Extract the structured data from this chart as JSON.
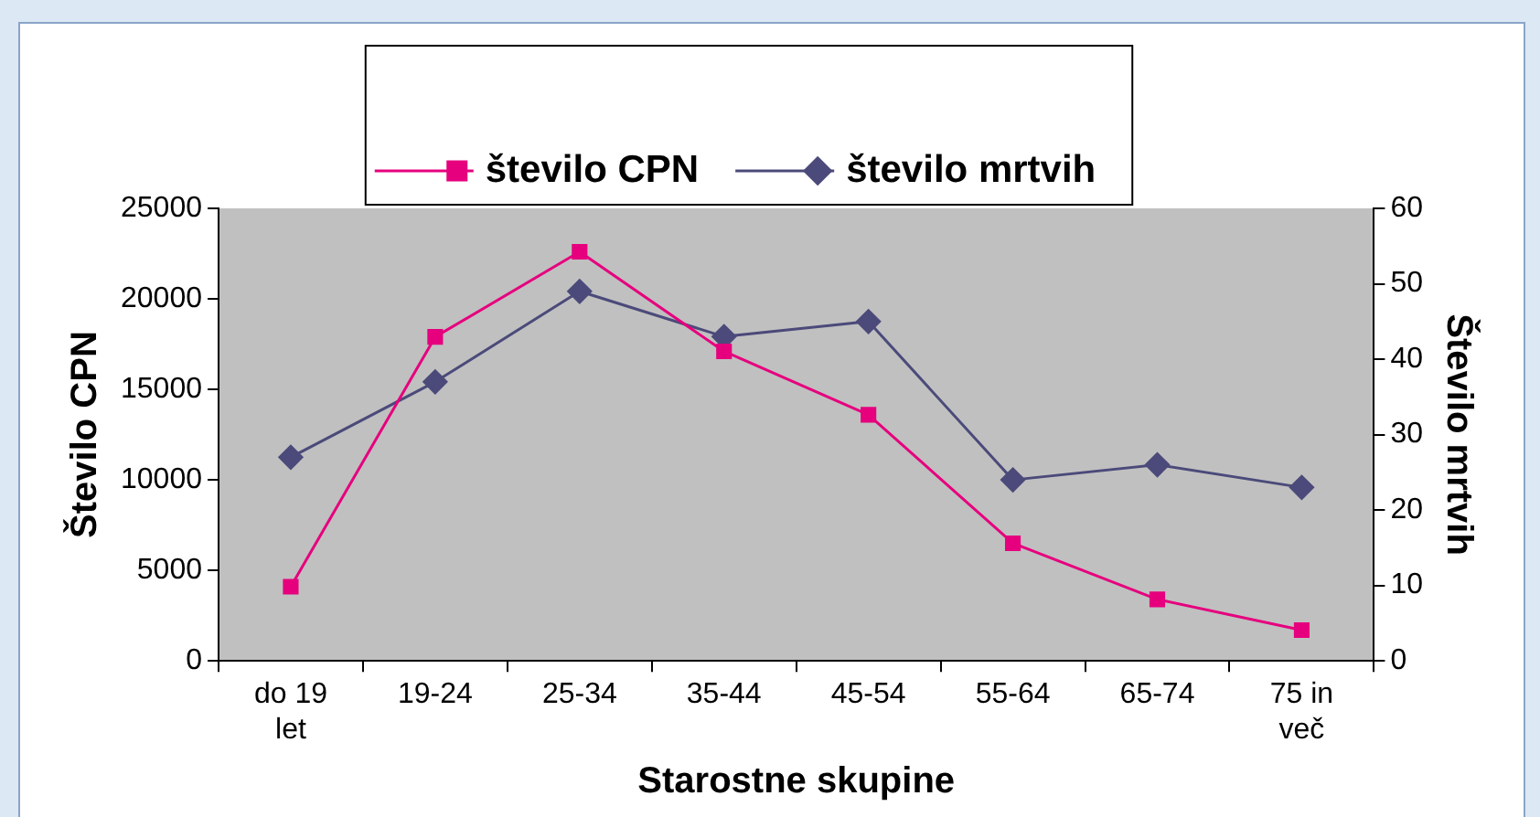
{
  "chart_data": {
    "type": "line",
    "xlabel": "Starostne skupine",
    "ylabel": "Število CPN",
    "y2label": "Število mrtvih",
    "categories": [
      "do 19\nlet",
      "19-24",
      "25-34",
      "35-44",
      "45-54",
      "55-64",
      "65-74",
      "75 in\nveč"
    ],
    "series": [
      {
        "name": "število CPN",
        "color": "#e6007e",
        "marker": "square",
        "values": [
          4100,
          17900,
          22600,
          17100,
          13600,
          6500,
          3400,
          1700
        ]
      },
      {
        "name": "število mrtvih",
        "color": "#4b4a7a",
        "marker": "diamond",
        "axis": "y2",
        "values": [
          27,
          37,
          49,
          43,
          45,
          24,
          26,
          23
        ]
      }
    ],
    "ylim": [
      0,
      25000
    ],
    "yticks": [
      0,
      5000,
      10000,
      15000,
      20000,
      25000
    ],
    "y2lim": [
      0,
      60
    ],
    "y2ticks": [
      0,
      10,
      20,
      30,
      40,
      50,
      60
    ],
    "grid": false,
    "legend": "top"
  }
}
